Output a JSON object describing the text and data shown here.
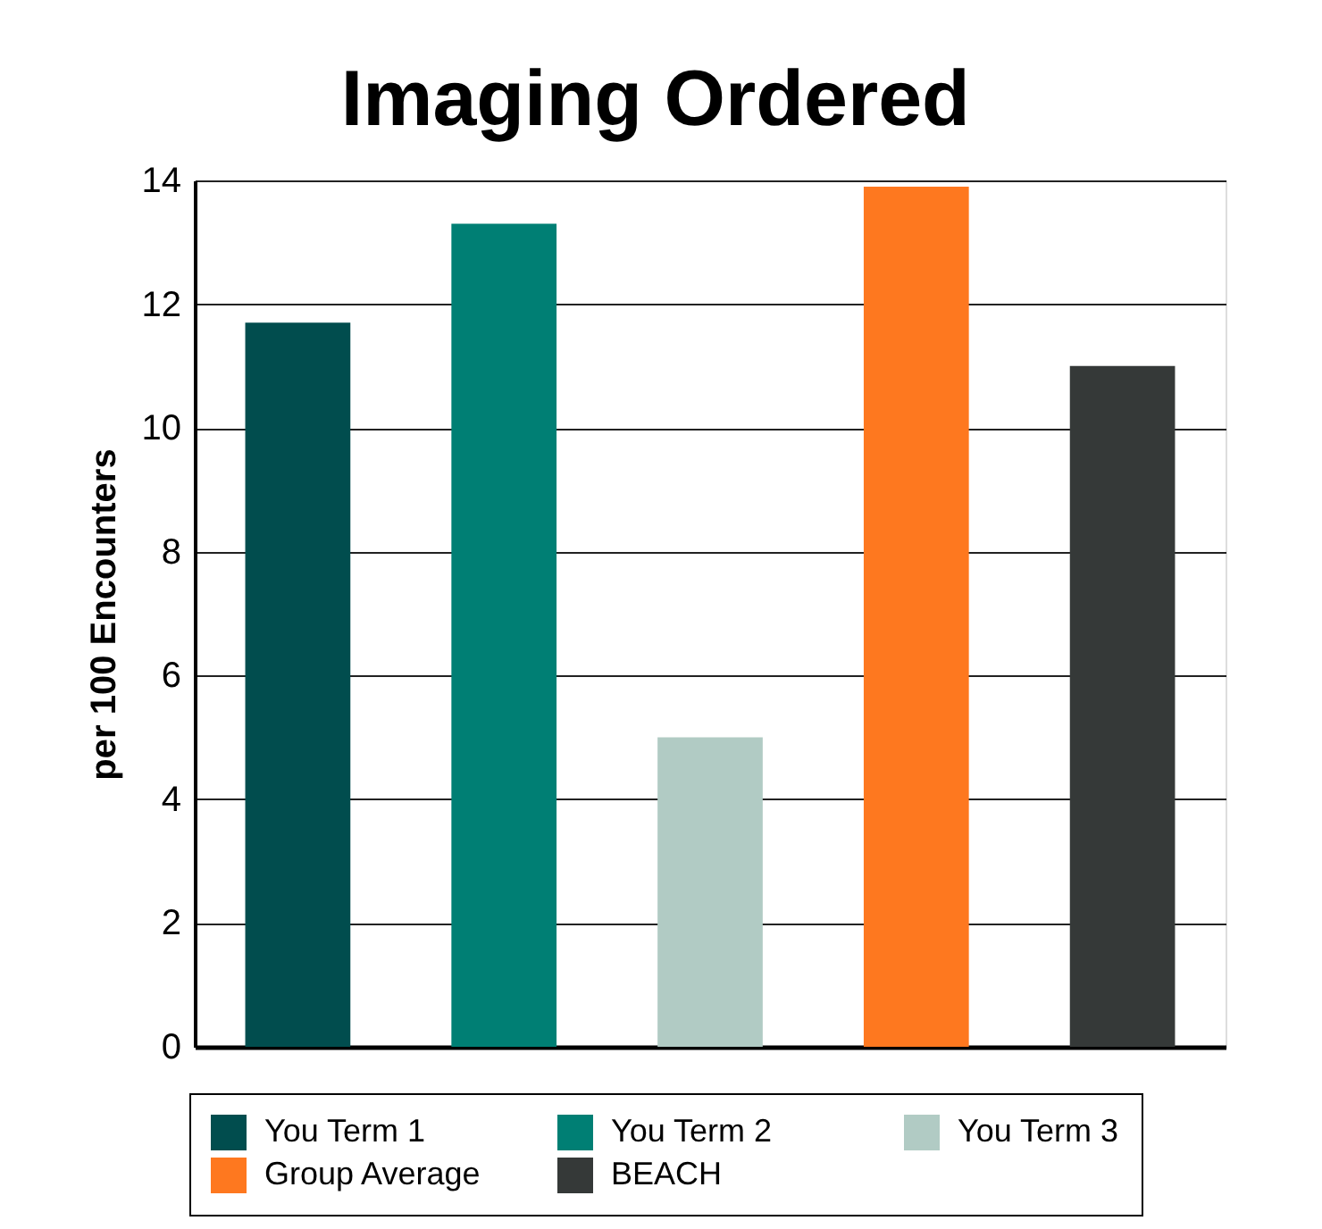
{
  "chart_data": {
    "type": "bar",
    "title": "Imaging Ordered",
    "ylabel": "per 100 Encounters",
    "categories": [
      null,
      null,
      null,
      null,
      null
    ],
    "series": [
      {
        "name": "You Term 1",
        "color": "#014d4e",
        "values": [
          11.7,
          null,
          null,
          null,
          null
        ]
      },
      {
        "name": "You Term 2",
        "color": "#007f74",
        "values": [
          null,
          13.3,
          null,
          null,
          null
        ]
      },
      {
        "name": "You Term 3",
        "color": "#b1cbc4",
        "values": [
          null,
          null,
          5.0,
          null,
          null
        ]
      },
      {
        "name": "Group Average",
        "color": "#fe781f",
        "values": [
          null,
          null,
          null,
          13.9,
          null
        ]
      },
      {
        "name": "BEACH",
        "color": "#353938",
        "values": [
          null,
          null,
          null,
          null,
          11.0
        ]
      }
    ],
    "ylim": [
      0,
      14
    ],
    "yticks": [
      0,
      2,
      4,
      6,
      8,
      10,
      12,
      14
    ],
    "grid": "y",
    "legend": "bottom",
    "tick_labels": "y"
  }
}
